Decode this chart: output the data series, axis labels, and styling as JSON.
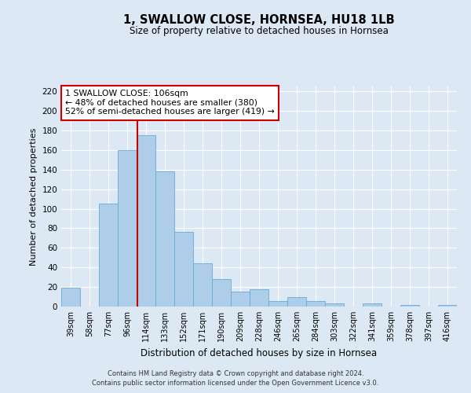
{
  "title": "1, SWALLOW CLOSE, HORNSEA, HU18 1LB",
  "subtitle": "Size of property relative to detached houses in Hornsea",
  "xlabel": "Distribution of detached houses by size in Hornsea",
  "ylabel": "Number of detached properties",
  "categories": [
    "39sqm",
    "58sqm",
    "77sqm",
    "96sqm",
    "114sqm",
    "133sqm",
    "152sqm",
    "171sqm",
    "190sqm",
    "209sqm",
    "228sqm",
    "246sqm",
    "265sqm",
    "284sqm",
    "303sqm",
    "322sqm",
    "341sqm",
    "359sqm",
    "378sqm",
    "397sqm",
    "416sqm"
  ],
  "values": [
    19,
    0,
    105,
    160,
    175,
    138,
    76,
    44,
    28,
    15,
    18,
    6,
    10,
    6,
    3,
    0,
    3,
    0,
    2,
    0,
    2
  ],
  "bar_color": "#aecde8",
  "bar_edge_color": "#6aaad4",
  "background_color": "#dde8f5",
  "vline_color": "#cc0000",
  "annotation_text": "1 SWALLOW CLOSE: 106sqm\n← 48% of detached houses are smaller (380)\n52% of semi-detached houses are larger (419) →",
  "annotation_box_edge": "#cc0000",
  "ylim": [
    0,
    225
  ],
  "yticks": [
    0,
    20,
    40,
    60,
    80,
    100,
    120,
    140,
    160,
    180,
    200,
    220
  ],
  "footer_line1": "Contains HM Land Registry data © Crown copyright and database right 2024.",
  "footer_line2": "Contains public sector information licensed under the Open Government Licence v3.0."
}
